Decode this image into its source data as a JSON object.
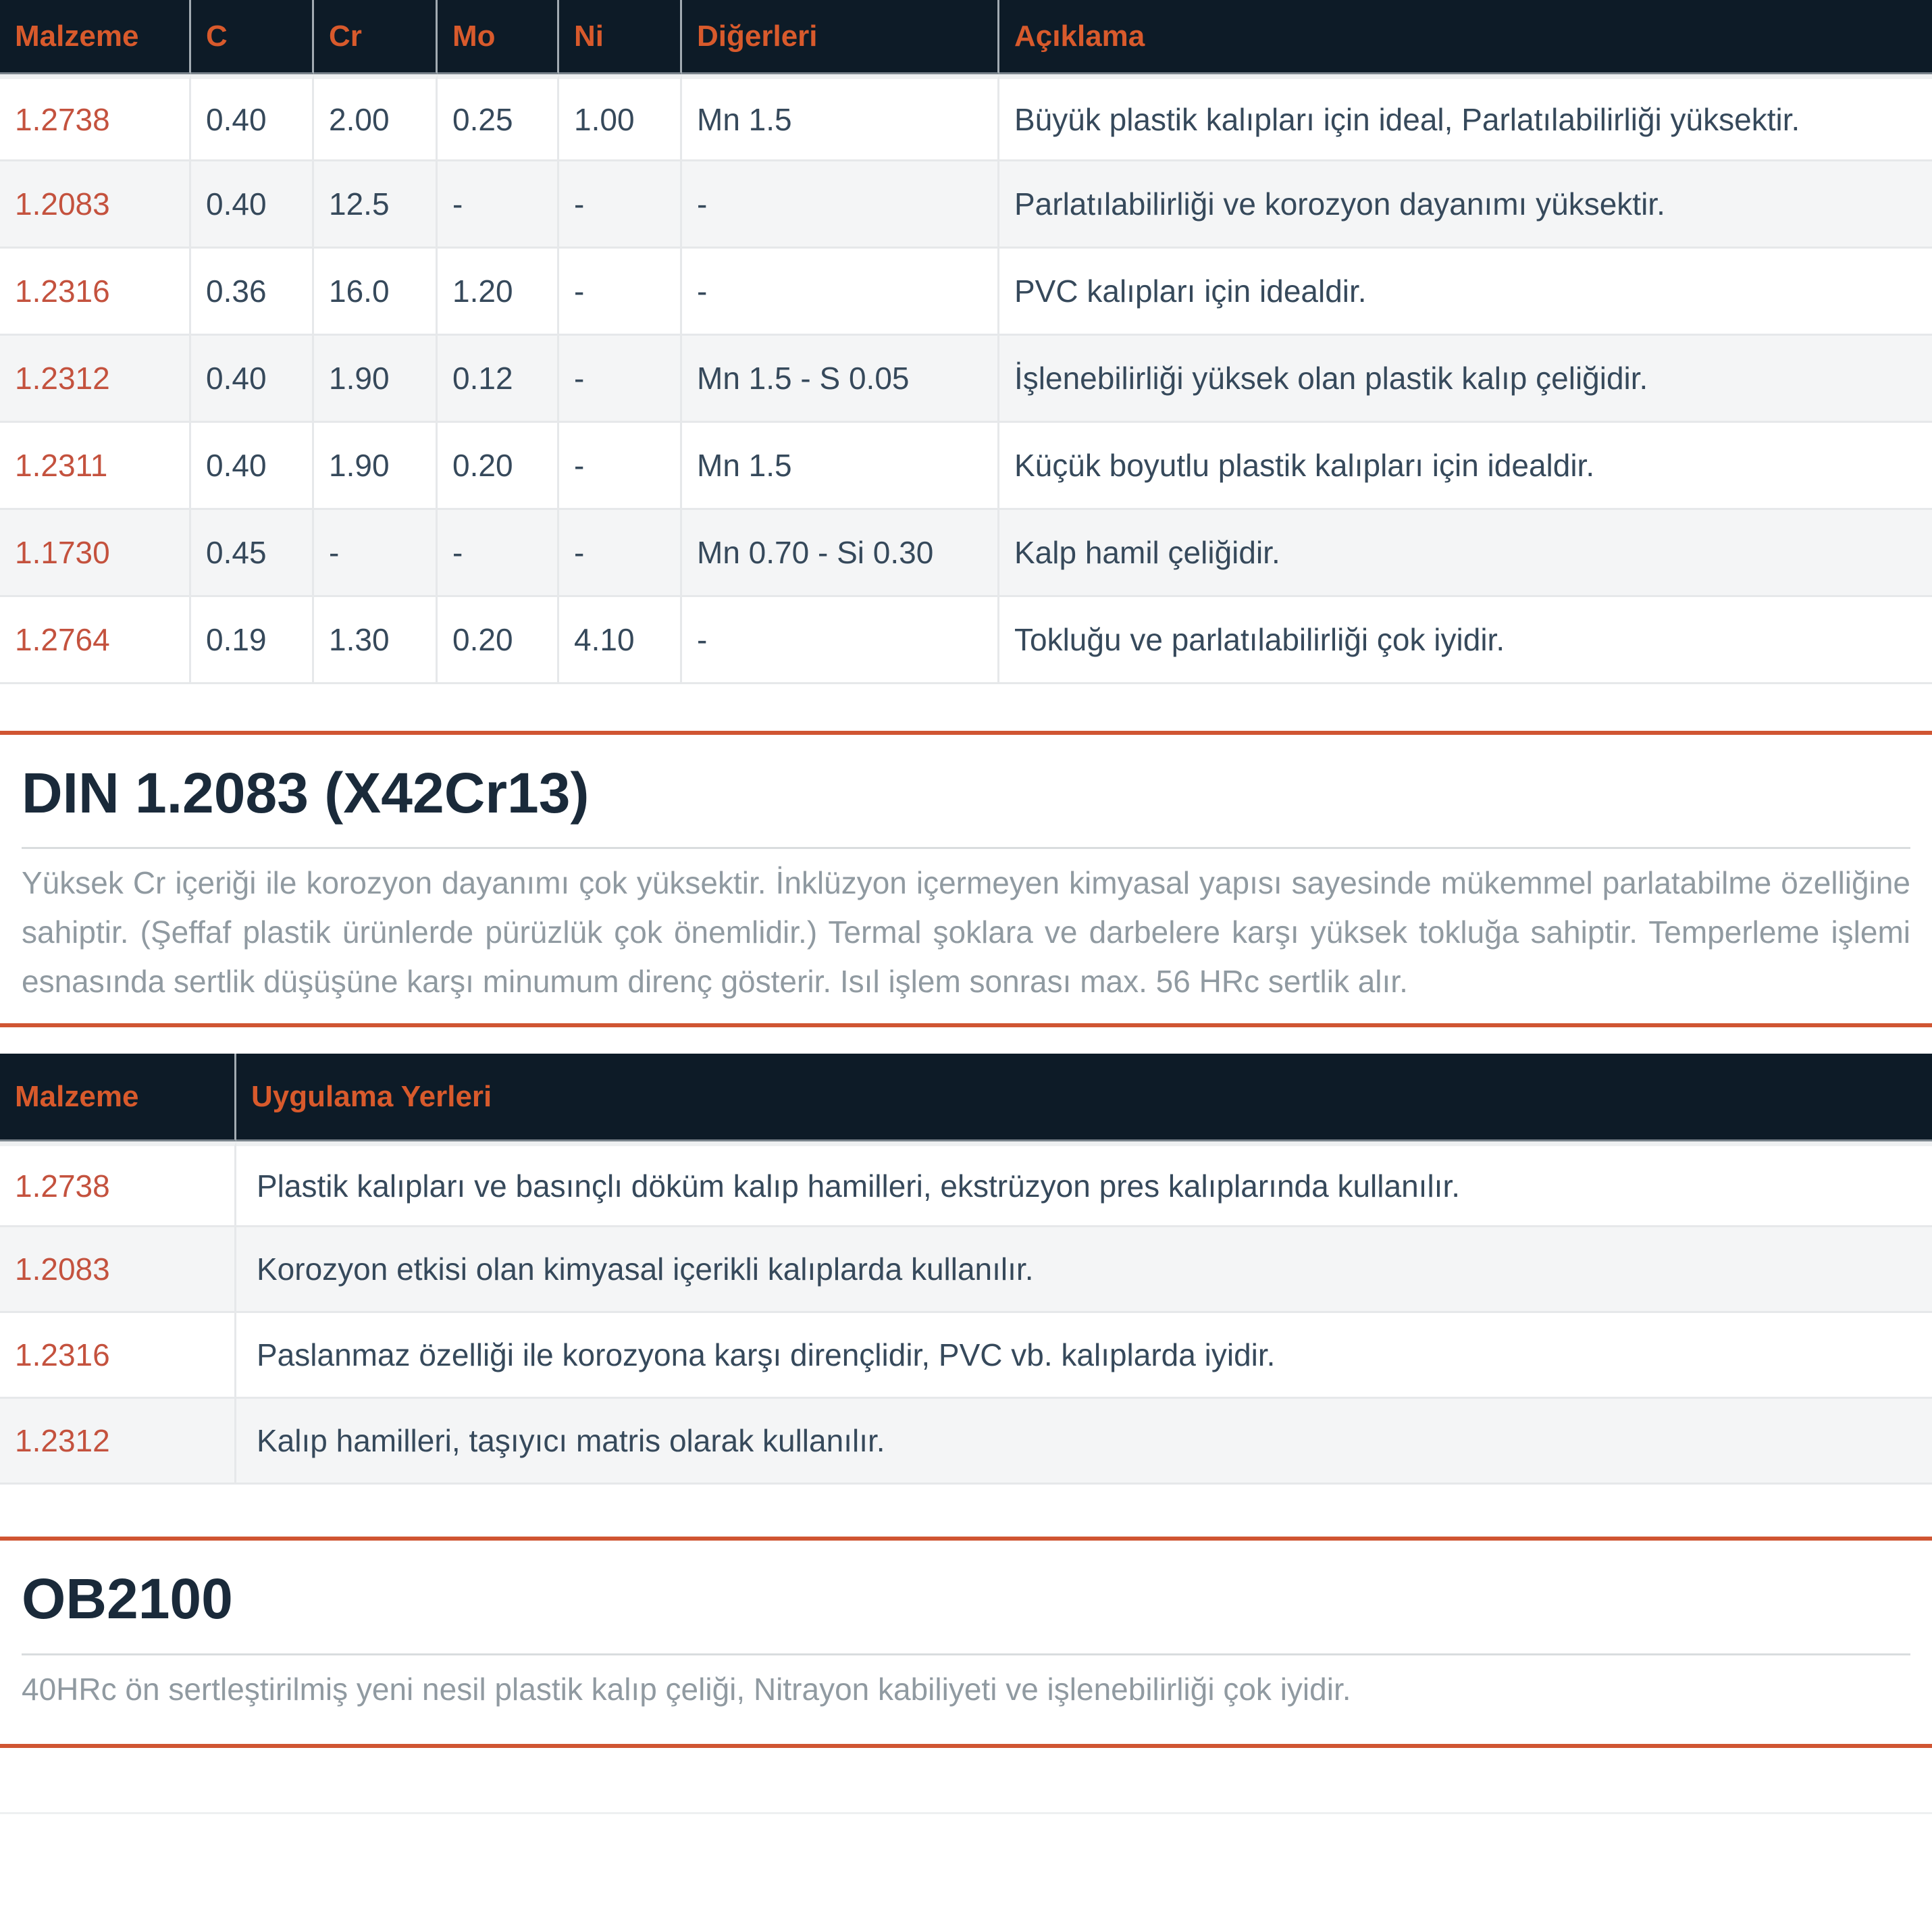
{
  "colors": {
    "table_header_bg": "#0d1b27",
    "table_header_text": "#d85a2c",
    "material_link_text": "#c4523e",
    "cell_text": "#36495b",
    "section_title_text": "#1a2a3a",
    "paragraph_text": "#909aa1",
    "section_divider": "#d05532",
    "row_alt_bg": "#f4f5f6"
  },
  "composition_table": {
    "headers": [
      "Malzeme",
      "C",
      "Cr",
      "Mo",
      "Ni",
      "Diğerleri",
      "Açıklama"
    ],
    "rows": [
      {
        "malzeme": "1.2738",
        "c": "0.40",
        "cr": "2.00",
        "mo": "0.25",
        "ni": "1.00",
        "digerleri": "Mn 1.5",
        "aciklama": "Büyük plastik kalıpları için ideal, Parlatılabilirliği yüksektir."
      },
      {
        "malzeme": "1.2083",
        "c": "0.40",
        "cr": "12.5",
        "mo": "-",
        "ni": "-",
        "digerleri": "-",
        "aciklama": "Parlatılabilirliği ve korozyon dayanımı yüksektir."
      },
      {
        "malzeme": "1.2316",
        "c": "0.36",
        "cr": "16.0",
        "mo": "1.20",
        "ni": "-",
        "digerleri": "-",
        "aciklama": "PVC kalıpları için idealdir."
      },
      {
        "malzeme": "1.2312",
        "c": "0.40",
        "cr": "1.90",
        "mo": "0.12",
        "ni": "-",
        "digerleri": "Mn 1.5 - S 0.05",
        "aciklama": "İşlenebilirliği yüksek olan plastik kalıp çeliğidir."
      },
      {
        "malzeme": "1.2311",
        "c": "0.40",
        "cr": "1.90",
        "mo": "0.20",
        "ni": "-",
        "digerleri": "Mn 1.5",
        "aciklama": "Küçük boyutlu plastik kalıpları için idealdir."
      },
      {
        "malzeme": "1.1730",
        "c": "0.45",
        "cr": "-",
        "mo": "-",
        "ni": "-",
        "digerleri": "Mn 0.70 - Si 0.30",
        "aciklama": "Kalp hamil çeliğidir."
      },
      {
        "malzeme": "1.2764",
        "c": "0.19",
        "cr": "1.30",
        "mo": "0.20",
        "ni": "4.10",
        "digerleri": "-",
        "aciklama": "Tokluğu ve parlatılabilirliği çok iyidir."
      }
    ]
  },
  "din_section": {
    "title": "DIN 1.2083 (X42Cr13)",
    "description": "Yüksek Cr içeriği ile korozyon dayanımı çok yüksektir. İnklüzyon içermeyen kimyasal yapısı sayesinde mükemmel parlatabilme özelliğine sahiptir. (Şeffaf plastik ürünlerde pürüzlük çok önemlidir.) Termal şoklara ve darbelere karşı yüksek tokluğa sahiptir. Temperleme işlemi esnasında sertlik düşüşüne karşı minumum direnç gösterir. Isıl işlem sonrası max. 56 HRc sertlik alır."
  },
  "application_table": {
    "headers": [
      "Malzeme",
      "Uygulama Yerleri"
    ],
    "rows": [
      {
        "malzeme": "1.2738",
        "uygulama": "Plastik kalıpları ve basınçlı döküm kalıp hamilleri, ekstrüzyon pres kalıplarında kullanılır."
      },
      {
        "malzeme": "1.2083",
        "uygulama": "Korozyon etkisi olan kimyasal içerikli kalıplarda kullanılır."
      },
      {
        "malzeme": "1.2316",
        "uygulama": "Paslanmaz özelliği ile korozyona karşı dirençlidir, PVC vb. kalıplarda iyidir."
      },
      {
        "malzeme": "1.2312",
        "uygulama": "Kalıp hamilleri, taşıyıcı matris olarak kullanılır."
      }
    ]
  },
  "ob2100_section": {
    "title": "OB2100",
    "description": "40HRc ön sertleştirilmiş yeni nesil plastik kalıp çeliği, Nitrayon kabiliyeti ve işlenebilirliği çok iyidir."
  }
}
